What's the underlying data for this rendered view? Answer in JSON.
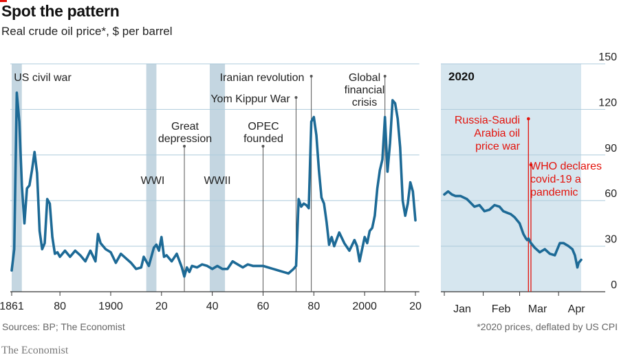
{
  "header": {
    "title": "Spot the pattern",
    "subtitle": "Real crude oil price*, $ per barrel"
  },
  "footer": {
    "sources": "Sources: BP; The Economist",
    "note": "*2020 prices, deflated by US CPI",
    "logo": "The Economist"
  },
  "colors": {
    "line": "#1d6a96",
    "shade": "#c4d6e1",
    "panel_bg": "#d6e6ef",
    "grid": "#aecbdc",
    "annotation": "#e3120b",
    "text": "#222222"
  },
  "chart_data": [
    {
      "type": "line",
      "name": "historical",
      "x_ticks": [
        1861,
        1880,
        1900,
        1920,
        1940,
        1960,
        1980,
        2000,
        2020
      ],
      "x_tick_labels": [
        "1861",
        "80",
        "1900",
        "20",
        "40",
        "60",
        "80",
        "2000",
        "20"
      ],
      "ylim": [
        0,
        150
      ],
      "xlim": [
        1860,
        2021
      ],
      "grid": true,
      "shaded_periods": [
        {
          "start": 1861,
          "end": 1865,
          "label": "US civil war"
        },
        {
          "start": 1914,
          "end": 1918,
          "label": "WWI"
        },
        {
          "start": 1939,
          "end": 1945,
          "label": "WWII"
        }
      ],
      "annotations": [
        {
          "x": 1929,
          "label": "Great depression"
        },
        {
          "x": 1960,
          "label": "OPEC founded"
        },
        {
          "x": 1973,
          "label": "Yom Kippur War"
        },
        {
          "x": 1979,
          "label": "Iranian revolution"
        },
        {
          "x": 2008,
          "label": "Global financial crisis"
        }
      ],
      "series": [
        {
          "x": [
            1861,
            1862,
            1863,
            1864,
            1865,
            1866,
            1867,
            1868,
            1869,
            1870,
            1871,
            1872,
            1873,
            1874,
            1875,
            1876,
            1877,
            1878,
            1879,
            1880,
            1882,
            1884,
            1886,
            1888,
            1890,
            1892,
            1894,
            1895,
            1896,
            1898,
            1900,
            1902,
            1904,
            1906,
            1908,
            1910,
            1912,
            1913,
            1915,
            1917,
            1918,
            1919,
            1920,
            1921,
            1922,
            1924,
            1926,
            1928,
            1929,
            1930,
            1931,
            1932,
            1934,
            1936,
            1938,
            1940,
            1942,
            1944,
            1946,
            1948,
            1950,
            1952,
            1954,
            1956,
            1958,
            1960,
            1962,
            1964,
            1966,
            1968,
            1970,
            1972,
            1973,
            1974,
            1975,
            1976,
            1977,
            1978,
            1979,
            1980,
            1981,
            1982,
            1983,
            1984,
            1985,
            1986,
            1987,
            1988,
            1990,
            1992,
            1994,
            1996,
            1997,
            1998,
            2000,
            2001,
            2002,
            2003,
            2004,
            2005,
            2006,
            2007,
            2008,
            2009,
            2010,
            2011,
            2012,
            2013,
            2014,
            2015,
            2016,
            2017,
            2018,
            2019,
            2020
          ],
          "y": [
            14,
            28,
            131,
            112,
            70,
            45,
            68,
            70,
            80,
            92,
            78,
            40,
            28,
            32,
            61,
            58,
            36,
            25,
            26,
            23,
            27,
            23,
            27,
            24,
            20,
            27,
            20,
            38,
            32,
            28,
            26,
            19,
            25,
            22,
            19,
            15,
            16,
            23,
            17,
            29,
            31,
            27,
            36,
            23,
            24,
            20,
            25,
            16,
            10,
            16,
            13,
            17,
            16,
            18,
            17,
            15,
            17,
            15,
            15,
            20,
            18,
            16,
            18,
            17,
            17,
            17,
            16,
            15,
            14,
            13,
            12,
            15,
            17,
            61,
            56,
            58,
            57,
            55,
            112,
            115,
            103,
            80,
            62,
            58,
            46,
            31,
            36,
            30,
            39,
            32,
            27,
            34,
            30,
            20,
            36,
            32,
            40,
            42,
            50,
            68,
            80,
            87,
            115,
            79,
            98,
            126,
            124,
            114,
            95,
            60,
            50,
            58,
            72,
            66,
            47
          ]
        }
      ]
    },
    {
      "type": "line",
      "name": "2020",
      "panel_label": "2020",
      "x_tick_labels": [
        "Jan",
        "Feb",
        "Mar",
        "Apr"
      ],
      "x_ticks_day": [
        0,
        31,
        60,
        91
      ],
      "xlim_day": [
        0,
        109
      ],
      "y_ticks": [
        0,
        30,
        60,
        90,
        120,
        150
      ],
      "ylim": [
        0,
        150
      ],
      "grid": true,
      "annotations": [
        {
          "day": 67,
          "label": "Russia-Saudi Arabia oil price war"
        },
        {
          "day": 69,
          "label": "WHO declares covid-19 a pandemic"
        }
      ],
      "series": [
        {
          "day": [
            0,
            3,
            6,
            9,
            13,
            18,
            24,
            28,
            32,
            36,
            40,
            44,
            47,
            50,
            53,
            56,
            60,
            63,
            65,
            66,
            67,
            69,
            72,
            76,
            80,
            84,
            88,
            92,
            95,
            99,
            102,
            104,
            106,
            107,
            109
          ],
          "y": [
            64,
            66,
            64,
            63,
            63,
            61,
            56,
            57,
            53,
            54,
            57,
            56,
            53,
            52,
            51,
            49,
            45,
            38,
            35,
            34,
            35,
            32,
            29,
            26,
            28,
            25,
            24,
            32,
            32,
            30,
            28,
            24,
            16,
            19,
            21
          ]
        }
      ]
    }
  ]
}
